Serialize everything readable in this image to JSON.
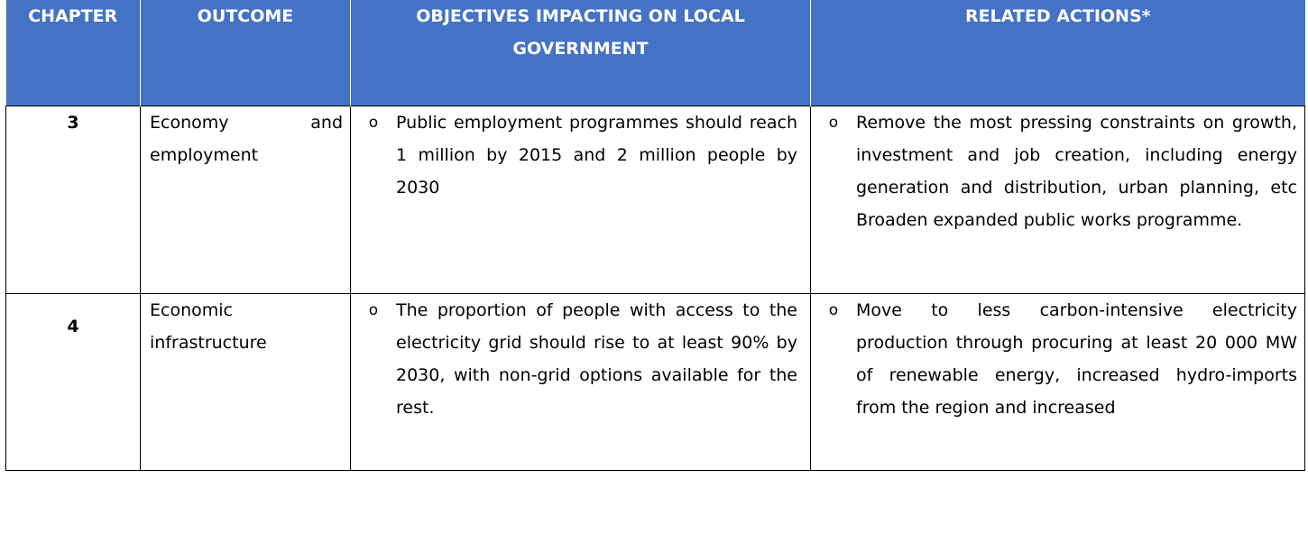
{
  "table": {
    "headers": {
      "chapter": "CHAPTER",
      "outcome": "OUTCOME",
      "objectives": "OBJECTIVES IMPACTING ON LOCAL GOVERNMENT",
      "actions": "RELATED ACTIONS*"
    },
    "header_color": "#4472c4",
    "bullet_symbol": "o",
    "rows": [
      {
        "chapter": "3",
        "outcome": "Economy and employment",
        "objective": "Public employment programmes should reach 1 million by 2015 and 2 million people by 2030",
        "action": "Remove the most pressing constraints on growth, investment and job creation, including energy generation and distribution, urban planning, etc Broaden expanded public works programme."
      },
      {
        "chapter": "4",
        "outcome": "Economic infrastructure",
        "objective": "The proportion of people with access to the electricity grid should rise to at least 90% by 2030, with non-grid options available for the rest.",
        "action": "Move to less carbon-intensive electricity production through procuring at least 20 000 MW of renewable energy, increased hydro-imports from the region and increased"
      }
    ]
  }
}
